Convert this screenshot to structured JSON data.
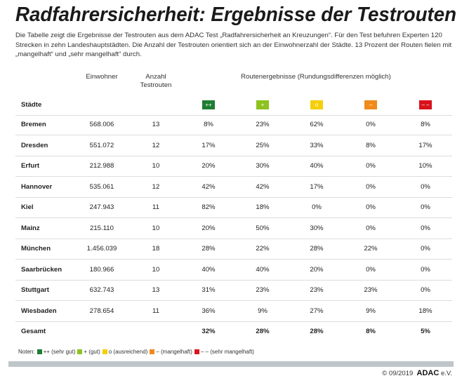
{
  "title": "Radfahrersicherheit: Ergebnisse der Testrouten",
  "intro": "Die Tabelle zeigt die Ergebnisse der Testrouten aus dem ADAC Test „Radfahrersicherheit an Kreuzungen“. Für den Test befuhren Experten 120 Strecken in zehn Landeshauptstädten. Die Anzahl der Testrouten orientiert sich an der Einwohnerzahl der Städte. 13 Prozent der Routen fielen mit „mangelhaft“ und „sehr mangelhaft“ durch.",
  "headers": {
    "einwohner": "Einwohner",
    "anzahl_1": "Anzahl",
    "anzahl_2": "Testrouten",
    "results": "Routenergebnisse (Rundungsdifferenzen möglich)",
    "staedte": "Städte"
  },
  "grades": [
    {
      "label": "++",
      "color": "#1e7d32"
    },
    {
      "label": "+",
      "color": "#8dc21f"
    },
    {
      "label": "o",
      "color": "#f5cf0a"
    },
    {
      "label": "–",
      "color": "#f08a1a"
    },
    {
      "label": "– –",
      "color": "#d8131b"
    }
  ],
  "rows": [
    [
      "Bremen",
      "568.006",
      "13",
      "8%",
      "23%",
      "62%",
      "0%",
      "8%"
    ],
    [
      "Dresden",
      "551.072",
      "12",
      "17%",
      "25%",
      "33%",
      "8%",
      "17%"
    ],
    [
      "Erfurt",
      "212.988",
      "10",
      "20%",
      "30%",
      "40%",
      "0%",
      "10%"
    ],
    [
      "Hannover",
      "535.061",
      "12",
      "42%",
      "42%",
      "17%",
      "0%",
      "0%"
    ],
    [
      "Kiel",
      "247.943",
      "11",
      "82%",
      "18%",
      "0%",
      "0%",
      "0%"
    ],
    [
      "Mainz",
      "215.110",
      "10",
      "20%",
      "50%",
      "30%",
      "0%",
      "0%"
    ],
    [
      "München",
      "1.456.039",
      "18",
      "28%",
      "22%",
      "28%",
      "22%",
      "0%"
    ],
    [
      "Saarbrücken",
      "180.966",
      "10",
      "40%",
      "40%",
      "20%",
      "0%",
      "0%"
    ],
    [
      "Stuttgart",
      "632.743",
      "13",
      "31%",
      "23%",
      "23%",
      "23%",
      "0%"
    ],
    [
      "Wiesbaden",
      "278.654",
      "11",
      "36%",
      "9%",
      "27%",
      "9%",
      "18%"
    ]
  ],
  "total": [
    "Gesamt",
    "",
    "",
    "32%",
    "28%",
    "28%",
    "8%",
    "5%"
  ],
  "legend": {
    "label": "Noten:",
    "items": [
      "++ (sehr gut)",
      "+ (gut)",
      "o (ausreichend)",
      "– (mangelhaft)",
      "– – (sehr mangelhaft)"
    ]
  },
  "footer": {
    "copyright": "© 09/2019",
    "brand": "ADAC",
    "suffix": "e.V."
  }
}
